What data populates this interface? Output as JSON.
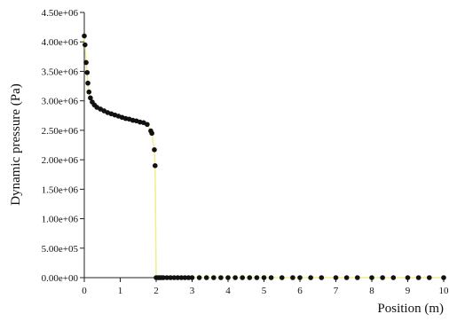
{
  "chart_data": {
    "type": "scatter-line",
    "xlabel": "Position (m)",
    "ylabel": "Dynamic pressure (Pa)",
    "xlim": [
      0,
      10
    ],
    "ylim": [
      0,
      4500000
    ],
    "xticks": [
      0,
      1,
      2,
      3,
      4,
      5,
      6,
      7,
      8,
      9,
      10
    ],
    "yticks": [
      {
        "value": 0,
        "label": "0.00e+00"
      },
      {
        "value": 500000,
        "label": "5.00e+05"
      },
      {
        "value": 1000000,
        "label": "1.00e+06"
      },
      {
        "value": 1500000,
        "label": "1.50e+06"
      },
      {
        "value": 2000000,
        "label": "2.00e+06"
      },
      {
        "value": 2500000,
        "label": "2.50e+06"
      },
      {
        "value": 3000000,
        "label": "3.00e+06"
      },
      {
        "value": 3500000,
        "label": "3.50e+06"
      },
      {
        "value": 4000000,
        "label": "4.00e+06"
      },
      {
        "value": 4500000,
        "label": "4.50e+06"
      }
    ],
    "series": [
      {
        "line_color": "#f2ee8a",
        "color": "#111111",
        "x": [
          0,
          0.02,
          0.05,
          0.08,
          0.1,
          0.13,
          0.17,
          0.22,
          0.28,
          0.35,
          0.45,
          0.55,
          0.65,
          0.75,
          0.85,
          0.95,
          1.05,
          1.15,
          1.25,
          1.35,
          1.45,
          1.55,
          1.65,
          1.75,
          1.85,
          1.88,
          1.95,
          1.97,
          2.0,
          2.05,
          2.1,
          2.15,
          2.2,
          2.3,
          2.4,
          2.5,
          2.6,
          2.7,
          2.8,
          2.9,
          3,
          3.2,
          3.4,
          3.6,
          3.8,
          4,
          4.2,
          4.4,
          4.6,
          4.8,
          5,
          5.2,
          5.5,
          5.8,
          6,
          6.3,
          6.6,
          7,
          7.3,
          7.6,
          8,
          8.3,
          8.6,
          9,
          9.3,
          9.6,
          10
        ],
        "values": [
          4100000,
          3950000,
          3650000,
          3480000,
          3300000,
          3150000,
          3050000,
          2980000,
          2930000,
          2890000,
          2860000,
          2830000,
          2800000,
          2780000,
          2760000,
          2740000,
          2720000,
          2700000,
          2690000,
          2670000,
          2660000,
          2640000,
          2630000,
          2600000,
          2490000,
          2450000,
          2170000,
          1900000,
          0,
          0,
          0,
          0,
          0,
          0,
          0,
          0,
          0,
          0,
          0,
          0,
          0,
          0,
          0,
          0,
          0,
          0,
          0,
          0,
          0,
          0,
          0,
          0,
          0,
          0,
          0,
          0,
          0,
          0,
          0,
          0,
          0,
          0,
          0,
          0,
          0,
          0,
          0
        ]
      }
    ]
  }
}
